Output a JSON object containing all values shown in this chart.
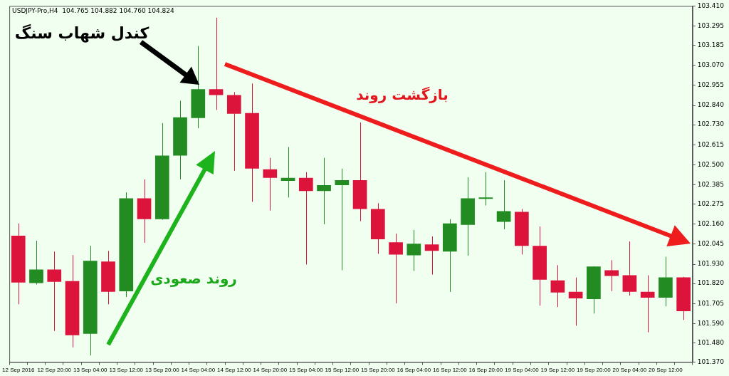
{
  "chart_data": {
    "type": "candlestick",
    "title": "USDJPY-Pro,H4  104.765 104.882 104.760 104.824",
    "annotations": [
      "کندل شهاب سنگ",
      "روند صعودی",
      "بازگشت روند"
    ],
    "categories": [
      "12 Sep 2016",
      null,
      "12 Sep 20:00",
      null,
      "13 Sep 04:00",
      null,
      "13 Sep 12:00",
      null,
      "13 Sep 20:00",
      null,
      "14 Sep 04:00",
      null,
      "14 Sep 12:00",
      null,
      "14 Sep 20:00",
      null,
      "15 Sep 04:00",
      null,
      "15 Sep 12:00",
      null,
      "15 Sep 20:00",
      null,
      "16 Sep 04:00",
      null,
      "16 Sep 12:00",
      null,
      "16 Sep 20:00",
      null,
      "19 Sep 04:00",
      null,
      "19 Sep 12:00",
      null,
      "19 Sep 20:00",
      null,
      "20 Sep 04:00",
      null,
      "20 Sep 12:00",
      null
    ],
    "ohlc": [
      [
        102.094,
        102.164,
        101.701,
        101.826
      ],
      [
        101.822,
        102.065,
        101.814,
        101.9
      ],
      [
        101.9,
        102.003,
        101.548,
        101.83
      ],
      [
        101.834,
        101.983,
        101.454,
        101.524
      ],
      [
        101.532,
        102.036,
        101.408,
        101.95
      ],
      [
        101.946,
        102.007,
        101.701,
        101.772
      ],
      [
        101.776,
        102.342,
        101.743,
        102.308
      ],
      [
        102.308,
        102.417,
        102.053,
        102.189
      ],
      [
        102.189,
        102.739,
        102.185,
        102.553
      ],
      [
        102.553,
        102.867,
        102.417,
        102.772
      ],
      [
        102.768,
        103.181,
        102.71,
        102.933
      ],
      [
        102.933,
        103.343,
        102.814,
        102.9
      ],
      [
        102.9,
        102.917,
        102.466,
        102.792
      ],
      [
        102.797,
        102.966,
        102.288,
        102.478
      ],
      [
        102.474,
        102.54,
        102.238,
        102.425
      ],
      [
        102.408,
        102.602,
        102.313,
        102.425
      ],
      [
        102.425,
        102.458,
        101.929,
        102.35
      ],
      [
        102.35,
        102.54,
        102.16,
        102.383
      ],
      [
        102.383,
        102.478,
        101.896,
        102.412
      ],
      [
        102.412,
        102.743,
        102.177,
        102.247
      ],
      [
        102.247,
        102.28,
        101.99,
        102.073
      ],
      [
        102.056,
        102.106,
        101.706,
        101.986
      ],
      [
        101.982,
        102.127,
        101.892,
        102.048
      ],
      [
        102.044,
        102.09,
        101.871,
        102.007
      ],
      [
        102.003,
        102.189,
        101.772,
        102.164
      ],
      [
        102.156,
        102.429,
        101.979,
        102.308
      ],
      [
        102.305,
        102.458,
        102.267,
        102.31
      ],
      [
        102.173,
        102.412,
        102.131,
        102.235
      ],
      [
        102.23,
        102.247,
        101.986,
        102.036
      ],
      [
        102.036,
        102.147,
        101.693,
        101.842
      ],
      [
        101.838,
        101.925,
        101.685,
        101.768
      ],
      [
        101.772,
        101.854,
        101.578,
        101.735
      ],
      [
        101.731,
        101.917,
        101.648,
        101.917
      ],
      [
        101.896,
        101.954,
        101.776,
        101.863
      ],
      [
        101.867,
        102.061,
        101.751,
        101.772
      ],
      [
        101.772,
        101.867,
        101.54,
        101.739
      ],
      [
        101.739,
        101.973,
        101.689,
        101.855
      ],
      [
        101.855,
        101.858,
        101.611,
        101.661
      ]
    ],
    "colors": [
      "#dc143c",
      "#228b22",
      "#dc143c",
      "#dc143c",
      "#228b22",
      "#dc143c",
      "#228b22",
      "#dc143c",
      "#228b22",
      "#228b22",
      "#228b22",
      "#dc143c",
      "#dc143c",
      "#dc143c",
      "#dc143c",
      "#228b22",
      "#dc143c",
      "#228b22",
      "#228b22",
      "#dc143c",
      "#dc143c",
      "#dc143c",
      "#228b22",
      "#dc143c",
      "#228b22",
      "#228b22",
      "#228b22",
      "#228b22",
      "#dc143c",
      "#dc143c",
      "#dc143c",
      "#dc143c",
      "#228b22",
      "#dc143c",
      "#dc143c",
      "#dc143c",
      "#228b22",
      "#dc143c"
    ],
    "ylim": [
      101.37,
      103.41
    ],
    "yticks": [
      {
        "value": 103.41,
        "label": "103.410"
      },
      103.295,
      103.185,
      {
        "value": 103.07,
        "label": "103.070"
      },
      102.955,
      {
        "value": 102.84,
        "label": "102.840"
      },
      {
        "value": 102.73,
        "label": "102.730"
      },
      102.615,
      {
        "value": 102.5,
        "label": "102.500"
      },
      102.385,
      102.275,
      {
        "value": 102.16,
        "label": "102.160"
      },
      102.045,
      {
        "value": 101.93,
        "label": "101.930"
      },
      {
        "value": 101.82,
        "label": "101.820"
      },
      101.705,
      {
        "value": 101.59,
        "label": "101.590"
      },
      {
        "value": 101.48,
        "label": "101.480"
      },
      {
        "value": 101.37,
        "label": "101.370"
      }
    ]
  }
}
